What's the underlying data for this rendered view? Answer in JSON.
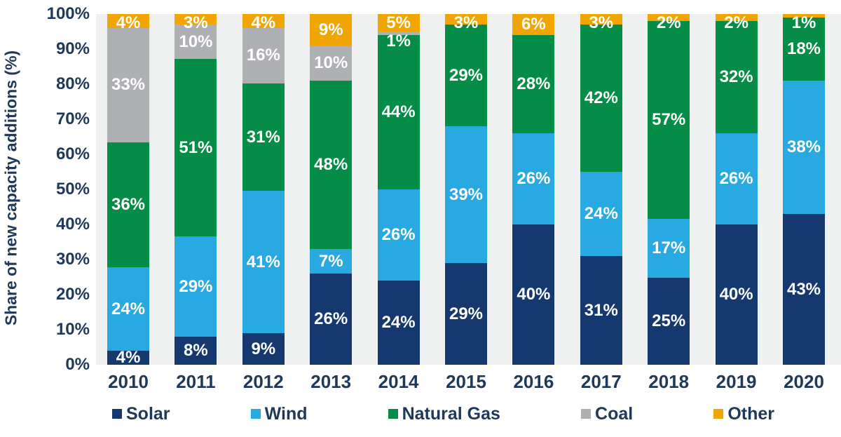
{
  "chart_data": {
    "type": "bar",
    "subtype": "stacked-100",
    "title": "",
    "ylabel": "Share of new capacity additions (%)",
    "xlabel": "",
    "ylim": [
      0,
      100
    ],
    "grid": false,
    "legend_position": "bottom",
    "plot_background": "#EFF0F0",
    "axis_text_color": "#20395B",
    "yticks": [
      "0%",
      "10%",
      "20%",
      "30%",
      "40%",
      "50%",
      "60%",
      "70%",
      "80%",
      "90%",
      "100%"
    ],
    "categories": [
      "2010",
      "2011",
      "2012",
      "2013",
      "2014",
      "2015",
      "2016",
      "2017",
      "2018",
      "2019",
      "2020"
    ],
    "series": [
      {
        "name": "Solar",
        "color": "#15396E",
        "values": [
          4,
          8,
          9,
          26,
          24,
          29,
          40,
          31,
          25,
          40,
          43
        ],
        "labels": [
          "4%",
          "8%",
          "9%",
          "26%",
          "24%",
          "29%",
          "40%",
          "31%",
          "25%",
          "40%",
          "43%"
        ]
      },
      {
        "name": "Wind",
        "color": "#29A9E1",
        "values": [
          24,
          29,
          41,
          7,
          26,
          39,
          26,
          24,
          17,
          26,
          38
        ],
        "labels": [
          "24%",
          "29%",
          "41%",
          "7%",
          "26%",
          "39%",
          "26%",
          "24%",
          "17%",
          "26%",
          "38%"
        ]
      },
      {
        "name": "Natural Gas",
        "color": "#058C46",
        "values": [
          36,
          51,
          31,
          48,
          44,
          29,
          28,
          42,
          57,
          32,
          18
        ],
        "labels": [
          "36%",
          "51%",
          "31%",
          "48%",
          "44%",
          "29%",
          "28%",
          "42%",
          "57%",
          "32%",
          "18%"
        ]
      },
      {
        "name": "Coal",
        "color": "#AEB0B3",
        "values": [
          33,
          10,
          16,
          10,
          1,
          0,
          0,
          0,
          0,
          0,
          0
        ],
        "labels": [
          "33%",
          "10%",
          "16%",
          "10%",
          "1%",
          "",
          "",
          "",
          "",
          "",
          ""
        ]
      },
      {
        "name": "Other",
        "color": "#F0A500",
        "values": [
          4,
          3,
          4,
          9,
          5,
          3,
          6,
          3,
          2,
          2,
          1
        ],
        "labels": [
          "4%",
          "3%",
          "4%",
          "9%",
          "5%",
          "3%",
          "6%",
          "3%",
          "2%",
          "2%",
          "1%"
        ]
      }
    ]
  }
}
